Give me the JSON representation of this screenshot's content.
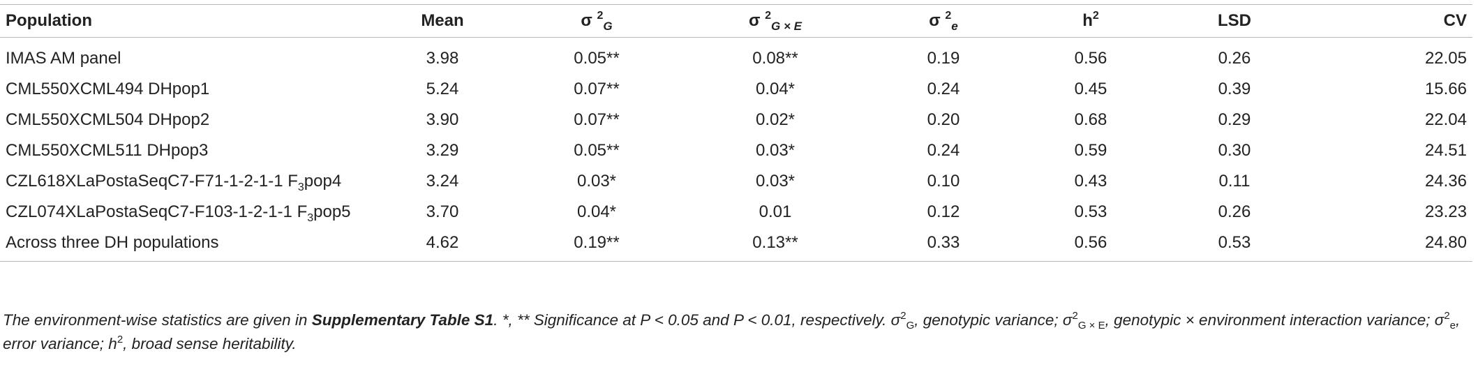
{
  "table": {
    "headers": {
      "population": "Population",
      "mean": "Mean",
      "sigma": "σ",
      "sq": "2",
      "g_sub": "G",
      "ge_sub": "G × E",
      "e_sub": "e",
      "h": "h",
      "lsd": "LSD",
      "cv": "CV"
    },
    "rows": [
      {
        "pop": "IMAS AM panel",
        "pop_sub": "",
        "pop_tail": "",
        "mean": "3.98",
        "g": "0.05**",
        "ge": "0.08**",
        "e": "0.19",
        "h2": "0.56",
        "lsd": "0.26",
        "cv": "22.05"
      },
      {
        "pop": "CML550XCML494 DHpop1",
        "pop_sub": "",
        "pop_tail": "",
        "mean": "5.24",
        "g": "0.07**",
        "ge": "0.04*",
        "e": "0.24",
        "h2": "0.45",
        "lsd": "0.39",
        "cv": "15.66"
      },
      {
        "pop": "CML550XCML504 DHpop2",
        "pop_sub": "",
        "pop_tail": "",
        "mean": "3.90",
        "g": "0.07**",
        "ge": "0.02*",
        "e": "0.20",
        "h2": "0.68",
        "lsd": "0.29",
        "cv": "22.04"
      },
      {
        "pop": "CML550XCML511 DHpop3",
        "pop_sub": "",
        "pop_tail": "",
        "mean": "3.29",
        "g": "0.05**",
        "ge": "0.03*",
        "e": "0.24",
        "h2": "0.59",
        "lsd": "0.30",
        "cv": "24.51"
      },
      {
        "pop": "CZL618XLaPostaSeqC7-F71-1-2-1-1 F",
        "pop_sub": "3",
        "pop_tail": "pop4",
        "mean": "3.24",
        "g": "0.03*",
        "ge": "0.03*",
        "e": "0.10",
        "h2": "0.43",
        "lsd": "0.11",
        "cv": "24.36"
      },
      {
        "pop": "CZL074XLaPostaSeqC7-F103-1-2-1-1 F",
        "pop_sub": "3",
        "pop_tail": "pop5",
        "mean": "3.70",
        "g": "0.04*",
        "ge": "0.01",
        "e": "0.12",
        "h2": "0.53",
        "lsd": "0.26",
        "cv": "23.23"
      },
      {
        "pop": "Across three DH populations",
        "pop_sub": "",
        "pop_tail": "",
        "mean": "4.62",
        "g": "0.19**",
        "ge": "0.13**",
        "e": "0.33",
        "h2": "0.56",
        "lsd": "0.53",
        "cv": "24.80"
      }
    ]
  },
  "footnote": {
    "t1": "The environment-wise statistics are given in ",
    "bold": "Supplementary Table S1",
    "t2": ". *, ** Significance at P < 0.05 and P < 0.01, respectively. σ",
    "s2a": "2",
    "subG": "G",
    "t3": ", genotypic variance; σ",
    "s2b": "2",
    "subGE": "G × E",
    "t4": ", genotypic × environment interaction variance; σ",
    "s2c": "2",
    "subE": "e",
    "t5": ", error variance; h",
    "s2d": "2",
    "t6": ", broad sense heritability."
  }
}
